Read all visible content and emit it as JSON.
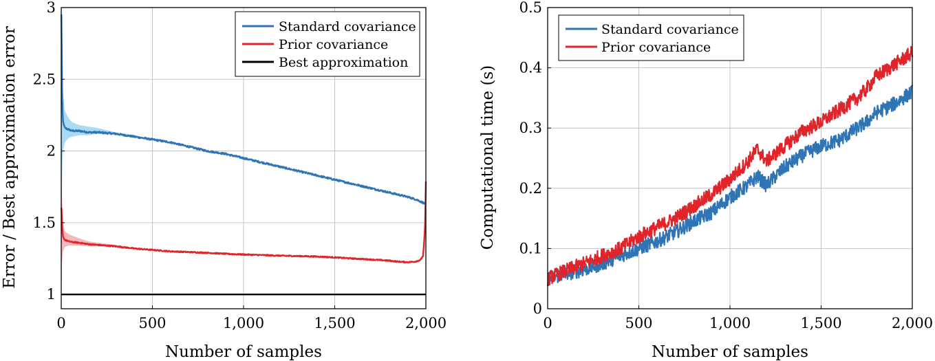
{
  "colors": {
    "standard": "#2f74b5",
    "standard_band": "#8ccdf2",
    "prior": "#e0242a",
    "prior_band": "#f2a0a3",
    "best": "#000000",
    "grid": "#b7b7b7"
  },
  "chart_data": [
    {
      "type": "line",
      "title": "",
      "xlabel": "Number of samples",
      "ylabel": "Error / Best approximation error",
      "xlim": [
        0,
        2000
      ],
      "ylim": [
        0.9,
        3
      ],
      "xticks": [
        0,
        500,
        1000,
        1500,
        2000
      ],
      "xtick_labels": [
        "0",
        "500",
        "1,000",
        "1,500",
        "2,000"
      ],
      "yticks": [
        1,
        1.5,
        2,
        2.5,
        3
      ],
      "ytick_labels": [
        "1",
        "1.5",
        "2",
        "2.5",
        "3"
      ],
      "grid": true,
      "legend_position": "top-right",
      "series": [
        {
          "name": "Standard covariance",
          "color_key": "standard",
          "x": [
            1,
            3,
            6,
            10,
            20,
            40,
            60,
            100,
            150,
            200,
            300,
            400,
            500,
            600,
            700,
            800,
            900,
            1000,
            1100,
            1200,
            1300,
            1400,
            1500,
            1600,
            1700,
            1800,
            1900,
            1950,
            2000
          ],
          "y": [
            2.95,
            2.7,
            2.3,
            2.2,
            2.16,
            2.15,
            2.14,
            2.14,
            2.13,
            2.13,
            2.12,
            2.1,
            2.08,
            2.06,
            2.03,
            2.0,
            1.98,
            1.95,
            1.92,
            1.89,
            1.86,
            1.83,
            1.8,
            1.77,
            1.74,
            1.71,
            1.68,
            1.66,
            1.63
          ],
          "band_lower": [
            1.0,
            1.6,
            1.9,
            2.0,
            2.06,
            2.09,
            2.1,
            2.11,
            2.11,
            2.12,
            2.11,
            2.1,
            2.08,
            2.06,
            2.03,
            2.0,
            1.98,
            1.95,
            1.92,
            1.89,
            1.86,
            1.83,
            1.8,
            1.77,
            1.74,
            1.71,
            1.68,
            1.66,
            1.63
          ],
          "band_upper": [
            3.0,
            2.95,
            2.6,
            2.4,
            2.28,
            2.23,
            2.2,
            2.18,
            2.17,
            2.16,
            2.13,
            2.11,
            2.08,
            2.06,
            2.03,
            2.0,
            1.98,
            1.95,
            1.92,
            1.89,
            1.86,
            1.83,
            1.8,
            1.77,
            1.74,
            1.71,
            1.68,
            1.66,
            1.63
          ],
          "noise": 0.006
        },
        {
          "name": "Prior covariance",
          "color_key": "prior",
          "x": [
            1,
            3,
            6,
            10,
            20,
            40,
            60,
            100,
            150,
            200,
            300,
            400,
            500,
            600,
            700,
            800,
            900,
            1000,
            1100,
            1200,
            1300,
            1400,
            1500,
            1600,
            1700,
            1800,
            1850,
            1900,
            1940,
            1970,
            1985,
            1995,
            2000
          ],
          "y": [
            1.6,
            1.55,
            1.45,
            1.4,
            1.38,
            1.37,
            1.365,
            1.36,
            1.35,
            1.345,
            1.335,
            1.32,
            1.31,
            1.3,
            1.295,
            1.29,
            1.283,
            1.278,
            1.274,
            1.27,
            1.267,
            1.264,
            1.258,
            1.25,
            1.243,
            1.235,
            1.228,
            1.225,
            1.228,
            1.24,
            1.27,
            1.45,
            1.79
          ],
          "band_lower": [
            1.0,
            1.2,
            1.25,
            1.3,
            1.33,
            1.34,
            1.34,
            1.34,
            1.335,
            1.335,
            1.33,
            1.32,
            1.31,
            1.3,
            1.295,
            1.29,
            1.283,
            1.278,
            1.274,
            1.27,
            1.267,
            1.264,
            1.258,
            1.25,
            1.243,
            1.235,
            1.228,
            1.225,
            1.228,
            1.24,
            1.27,
            1.45,
            1.79
          ],
          "band_upper": [
            1.78,
            1.75,
            1.6,
            1.5,
            1.44,
            1.42,
            1.41,
            1.39,
            1.37,
            1.36,
            1.345,
            1.325,
            1.31,
            1.3,
            1.295,
            1.29,
            1.283,
            1.278,
            1.274,
            1.27,
            1.267,
            1.264,
            1.258,
            1.25,
            1.243,
            1.235,
            1.228,
            1.225,
            1.228,
            1.24,
            1.27,
            1.45,
            1.79
          ],
          "noise": 0.004
        },
        {
          "name": "Best approximation",
          "color_key": "best",
          "x": [
            0,
            2000
          ],
          "y": [
            1,
            1
          ],
          "noise": 0
        }
      ]
    },
    {
      "type": "line",
      "title": "",
      "xlabel": "Number of samples",
      "ylabel": "Computational time (s)",
      "xlim": [
        0,
        2000
      ],
      "ylim": [
        0,
        0.5
      ],
      "xticks": [
        0,
        500,
        1000,
        1500,
        2000
      ],
      "xtick_labels": [
        "0",
        "500",
        "1,000",
        "1,500",
        "2,000"
      ],
      "yticks": [
        0,
        0.1,
        0.2,
        0.3,
        0.4,
        0.5
      ],
      "ytick_labels": [
        "0",
        "0.1",
        "0.2",
        "0.3",
        "0.4",
        "0.5"
      ],
      "grid": true,
      "legend_position": "top-left",
      "series": [
        {
          "name": "Standard covariance",
          "color_key": "standard",
          "x": [
            0,
            100,
            200,
            300,
            400,
            500,
            600,
            700,
            800,
            900,
            1000,
            1100,
            1150,
            1200,
            1300,
            1400,
            1500,
            1600,
            1700,
            1750,
            1800,
            1900,
            2000
          ],
          "y": [
            0.05,
            0.058,
            0.065,
            0.075,
            0.088,
            0.1,
            0.112,
            0.127,
            0.145,
            0.16,
            0.185,
            0.205,
            0.22,
            0.205,
            0.235,
            0.255,
            0.27,
            0.28,
            0.3,
            0.31,
            0.325,
            0.34,
            0.36
          ],
          "noise": 0.012
        },
        {
          "name": "Prior covariance",
          "color_key": "prior",
          "x": [
            0,
            100,
            200,
            300,
            400,
            500,
            600,
            700,
            800,
            900,
            1000,
            1100,
            1150,
            1200,
            1300,
            1400,
            1500,
            1600,
            1700,
            1750,
            1800,
            1900,
            2000
          ],
          "y": [
            0.05,
            0.063,
            0.075,
            0.088,
            0.1,
            0.12,
            0.135,
            0.15,
            0.17,
            0.19,
            0.215,
            0.245,
            0.265,
            0.245,
            0.27,
            0.295,
            0.31,
            0.33,
            0.35,
            0.365,
            0.385,
            0.405,
            0.425
          ],
          "noise": 0.012
        }
      ]
    }
  ]
}
